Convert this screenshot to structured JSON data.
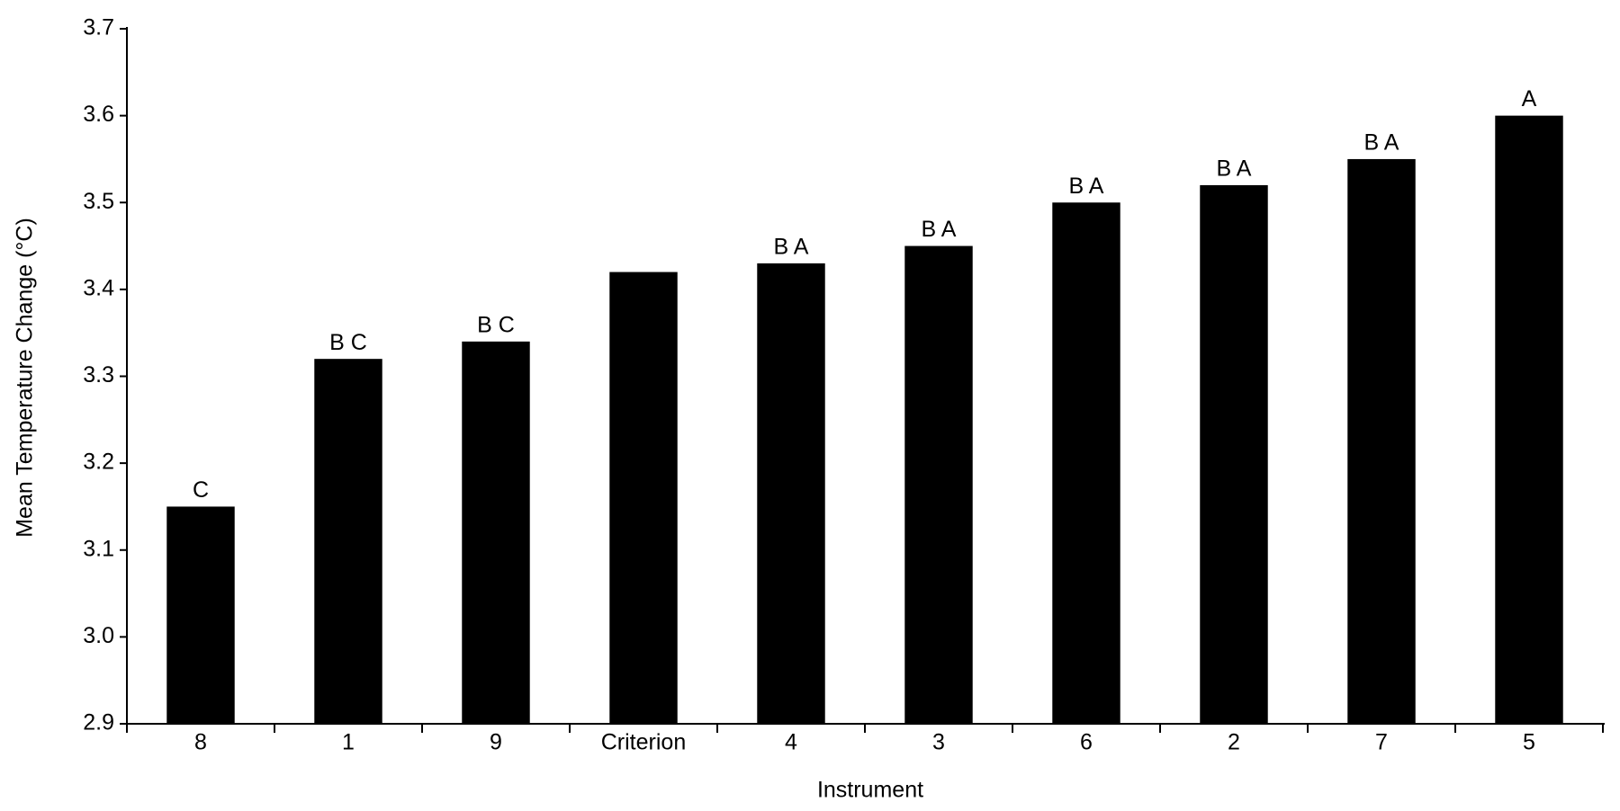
{
  "chart_data": {
    "type": "bar",
    "categories": [
      "8",
      "1",
      "9",
      "Criterion",
      "4",
      "3",
      "6",
      "2",
      "7",
      "5"
    ],
    "values": [
      3.15,
      3.32,
      3.34,
      3.42,
      3.43,
      3.45,
      3.5,
      3.52,
      3.55,
      3.6
    ],
    "letters": [
      "C",
      "B C",
      "B C",
      null,
      "B A",
      "B A",
      "B A",
      "B A",
      "B A",
      "A"
    ],
    "color": "#000000",
    "x_label": "Instrument",
    "y_label": "Mean Temperature Change (°C)",
    "ylim": [
      2.9,
      3.7
    ],
    "yticks": [
      2.9,
      {
        "value": 3,
        "label": "3.0"
      },
      3.1,
      3.2,
      3.3,
      3.4,
      3.5,
      3.6,
      3.7
    ],
    "grid": false
  }
}
